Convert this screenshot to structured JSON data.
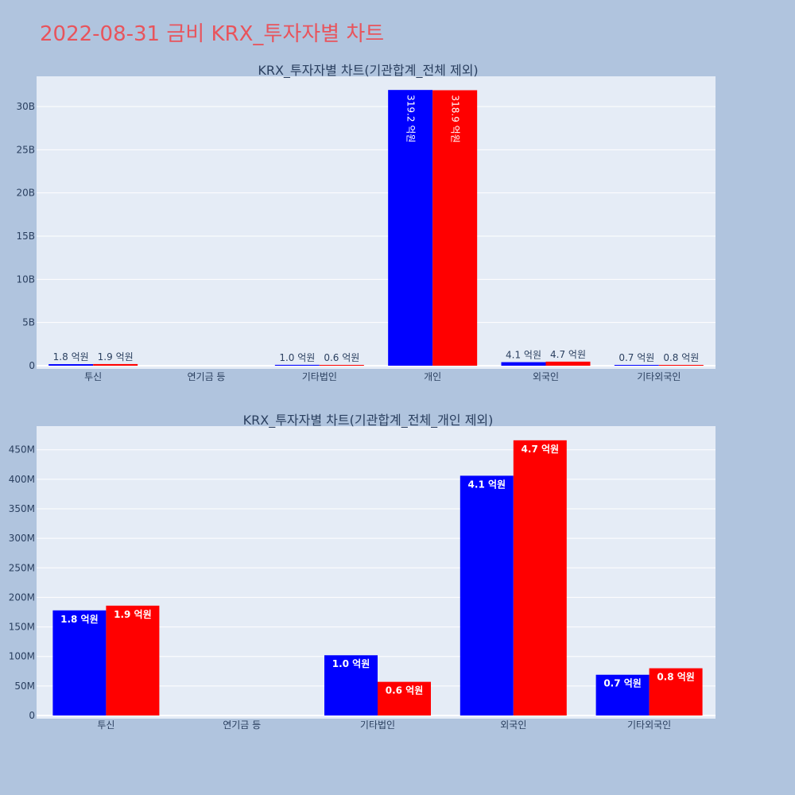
{
  "page": {
    "title": "2022-08-31 금비 KRX_투자자별 차트"
  },
  "colors": {
    "background": "#b0c4de",
    "plot_bg": "#e5ecf6",
    "grid": "#ffffff",
    "series_a": "#0000ff",
    "series_b": "#ff0000",
    "title": "#e8545c",
    "text": "#2a3f5f"
  },
  "chart_data": [
    {
      "type": "bar",
      "title": "KRX_투자자별 차트(기관합계_전체 제외)",
      "categories": [
        "투신",
        "연기금 등",
        "기타법인",
        "개인",
        "외국인",
        "기타외국인"
      ],
      "series": [
        {
          "values": [
            180000000,
            0,
            100000000,
            31920000000,
            410000000,
            70000000
          ],
          "labels": [
            "1.8 억원",
            "",
            "1.0 억원",
            "319.2 억원",
            "4.1 억원",
            "0.7 억원"
          ],
          "color": "#0000ff"
        },
        {
          "values": [
            190000000,
            0,
            60000000,
            31890000000,
            470000000,
            80000000
          ],
          "labels": [
            "1.9 억원",
            "",
            "0.6 억원",
            "318.9 억원",
            "4.7 억원",
            "0.8 억원"
          ],
          "color": "#ff0000"
        }
      ],
      "ylim": [
        0,
        33500000000
      ],
      "yticks": [
        0,
        5000000000,
        10000000000,
        15000000000,
        20000000000,
        25000000000,
        30000000000
      ],
      "ytick_labels": [
        "0",
        "5B",
        "10B",
        "15B",
        "20B",
        "25B",
        "30B"
      ],
      "grid": true,
      "label_style": "outside-small"
    },
    {
      "type": "bar",
      "title": "KRX_투자자별 차트(기관합계_전체_개인 제외)",
      "categories": [
        "투신",
        "연기금 등",
        "기타법인",
        "외국인",
        "기타외국인"
      ],
      "series": [
        {
          "values": [
            178000000,
            0,
            102000000,
            406000000,
            69000000
          ],
          "labels": [
            "1.8 억원",
            "",
            "1.0 억원",
            "4.1 억원",
            "0.7 억원"
          ],
          "color": "#0000ff"
        },
        {
          "values": [
            186000000,
            0,
            57000000,
            466000000,
            80000000
          ],
          "labels": [
            "1.9 억원",
            "",
            "0.6 억원",
            "4.7 억원",
            "0.8 억원"
          ],
          "color": "#ff0000"
        }
      ],
      "ylim": [
        0,
        490000000
      ],
      "yticks": [
        0,
        50000000,
        100000000,
        150000000,
        200000000,
        250000000,
        300000000,
        350000000,
        400000000,
        450000000
      ],
      "ytick_labels": [
        "0",
        "50M",
        "100M",
        "150M",
        "200M",
        "250M",
        "300M",
        "350M",
        "400M",
        "450M"
      ],
      "grid": true,
      "label_style": "inside"
    }
  ]
}
